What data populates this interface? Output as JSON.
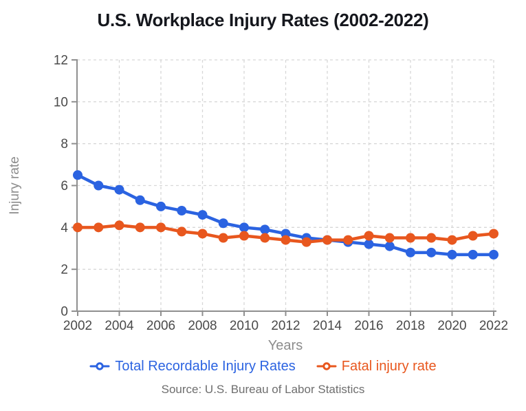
{
  "title": "U.S. Workplace Injury Rates (2002-2022)",
  "source": "Source: U.S. Bureau of Labor Statistics",
  "legend": {
    "items": [
      {
        "label": "Total Recordable Injury Rates",
        "color": "#2b63e1"
      },
      {
        "label": "Fatal injury rate",
        "color": "#e8571e"
      }
    ]
  },
  "colors": {
    "grid": "#d7d7d7",
    "axis": "#8f8f8f",
    "tick_label": "#4a4a4a",
    "axis_title": "#8c8c8c",
    "title": "#15171d",
    "source": "#6e6e6e",
    "background": "#ffffff",
    "marker_center": "#ffffff"
  },
  "chart_data": {
    "type": "line",
    "title": "U.S. Workplace Injury Rates (2002-2022)",
    "xlabel": "Years",
    "ylabel": "Injury rate",
    "x": [
      2002,
      2003,
      2004,
      2005,
      2006,
      2007,
      2008,
      2009,
      2010,
      2011,
      2012,
      2013,
      2014,
      2015,
      2016,
      2017,
      2018,
      2019,
      2020,
      2021,
      2022
    ],
    "series": [
      {
        "name": "Total Recordable Injury Rates",
        "color": "#2b63e1",
        "values": [
          6.5,
          6.0,
          5.8,
          5.3,
          5.0,
          4.8,
          4.6,
          4.2,
          4.0,
          3.9,
          3.7,
          3.5,
          3.4,
          3.3,
          3.2,
          3.1,
          2.8,
          2.8,
          2.7,
          2.7,
          2.7
        ]
      },
      {
        "name": "Fatal injury rate",
        "color": "#e8571e",
        "values": [
          4.0,
          4.0,
          4.1,
          4.0,
          4.0,
          3.8,
          3.7,
          3.5,
          3.6,
          3.5,
          3.4,
          3.3,
          3.4,
          3.4,
          3.6,
          3.5,
          3.5,
          3.5,
          3.4,
          3.6,
          3.7
        ]
      }
    ],
    "ylim": [
      0,
      12
    ],
    "yticks": [
      0,
      2,
      4,
      6,
      8,
      10,
      12
    ],
    "xticks": [
      2002,
      2004,
      2006,
      2008,
      2010,
      2012,
      2014,
      2016,
      2018,
      2020,
      2022
    ],
    "grid": true,
    "grid_style": "dashed",
    "legend_position": "bottom",
    "marker": "circle"
  }
}
